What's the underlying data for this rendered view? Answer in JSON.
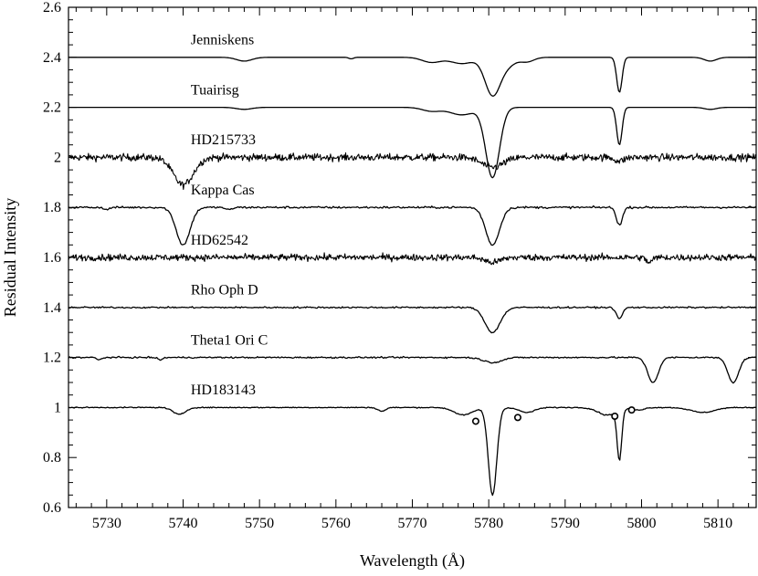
{
  "chart_data": {
    "type": "line",
    "xlabel": "Wavelength (Å)",
    "ylabel": "Residual Intensity",
    "xlim": [
      5725,
      5815
    ],
    "ylim": [
      0.6,
      2.6
    ],
    "xticks": [
      5730,
      5740,
      5750,
      5760,
      5770,
      5780,
      5790,
      5800,
      5810
    ],
    "yticks": [
      0.6,
      0.8,
      1,
      1.2,
      1.4,
      1.6,
      1.8,
      2,
      2.2,
      2.4,
      2.6
    ],
    "ytick_labels": [
      "0.6",
      "0.8",
      "1",
      "1.2",
      "1.4",
      "1.6",
      "1.8",
      "2",
      "2.2",
      "2.4",
      "2.6"
    ],
    "grid": false,
    "series": [
      {
        "name": "Jenniskens",
        "label_x": 5741,
        "label_y": 2.47,
        "baseline": 2.4,
        "noise": 0.0,
        "bands": [
          [
            5748,
            0.015,
            1.0
          ],
          [
            5772.5,
            0.02,
            1.2
          ],
          [
            5776.5,
            0.025,
            1.5
          ],
          [
            5780.5,
            0.15,
            1.0
          ],
          [
            5782.5,
            0.03,
            1.0
          ],
          [
            5785.0,
            0.018,
            0.9
          ],
          [
            5797.1,
            0.14,
            0.35
          ],
          [
            5809,
            0.015,
            0.8
          ],
          [
            5762,
            0.006,
            0.3
          ]
        ]
      },
      {
        "name": "Tuairisg",
        "label_x": 5741,
        "label_y": 2.27,
        "baseline": 2.2,
        "noise": 0.0,
        "bands": [
          [
            5748,
            0.008,
            1.0
          ],
          [
            5772.5,
            0.015,
            1.2
          ],
          [
            5776.5,
            0.03,
            1.6
          ],
          [
            5780.5,
            0.28,
            0.9
          ],
          [
            5797.1,
            0.15,
            0.35
          ],
          [
            5809,
            0.008,
            0.8
          ]
        ]
      },
      {
        "name": "HD215733",
        "label_x": 5741,
        "label_y": 2.07,
        "baseline": 2.0,
        "noise": 0.014,
        "bands": [
          [
            5740,
            0.11,
            1.3
          ],
          [
            5780.5,
            0.04,
            1.4
          ],
          [
            5797.1,
            0.015,
            0.6
          ]
        ]
      },
      {
        "name": "Kappa Cas",
        "label_x": 5741,
        "label_y": 1.87,
        "baseline": 1.8,
        "noise": 0.004,
        "bands": [
          [
            5740,
            0.15,
            0.9
          ],
          [
            5780.5,
            0.15,
            0.9
          ],
          [
            5797.1,
            0.07,
            0.4
          ],
          [
            5730,
            0.01,
            0.3
          ],
          [
            5746,
            0.01,
            0.4
          ]
        ]
      },
      {
        "name": "HD62542",
        "label_x": 5741,
        "label_y": 1.67,
        "baseline": 1.6,
        "noise": 0.013,
        "bands": [
          [
            5780.5,
            0.02,
            1.0
          ],
          [
            5801,
            0.02,
            0.4
          ]
        ]
      },
      {
        "name": "Rho Oph D",
        "label_x": 5741,
        "label_y": 1.47,
        "baseline": 1.4,
        "noise": 0.003,
        "bands": [
          [
            5780.5,
            0.1,
            1.0
          ],
          [
            5797.1,
            0.045,
            0.4
          ]
        ]
      },
      {
        "name": "Theta1 Ori C",
        "label_x": 5741,
        "label_y": 1.27,
        "baseline": 1.2,
        "noise": 0.003,
        "bands": [
          [
            5780.5,
            0.02,
            1.2
          ],
          [
            5801.5,
            0.1,
            0.7
          ],
          [
            5812,
            0.1,
            0.7
          ],
          [
            5729,
            0.01,
            0.3
          ],
          [
            5737,
            0.01,
            0.3
          ]
        ]
      },
      {
        "name": "HD183143",
        "label_x": 5741,
        "label_y": 1.07,
        "baseline": 1.0,
        "noise": 0.002,
        "bands": [
          [
            5739.5,
            0.028,
            0.8
          ],
          [
            5766,
            0.015,
            0.5
          ],
          [
            5776.7,
            0.03,
            1.2
          ],
          [
            5780.5,
            0.35,
            0.55
          ],
          [
            5785,
            0.02,
            1.0
          ],
          [
            5797.1,
            0.2,
            0.3
          ],
          [
            5799.5,
            0.01,
            0.8
          ],
          [
            5795.5,
            0.03,
            1.2
          ],
          [
            5808,
            0.02,
            1.5
          ]
        ]
      }
    ],
    "markers": [
      {
        "x": 5778.3,
        "y": 0.945
      },
      {
        "x": 5783.8,
        "y": 0.96
      },
      {
        "x": 5796.5,
        "y": 0.965
      },
      {
        "x": 5798.7,
        "y": 0.99
      }
    ]
  }
}
